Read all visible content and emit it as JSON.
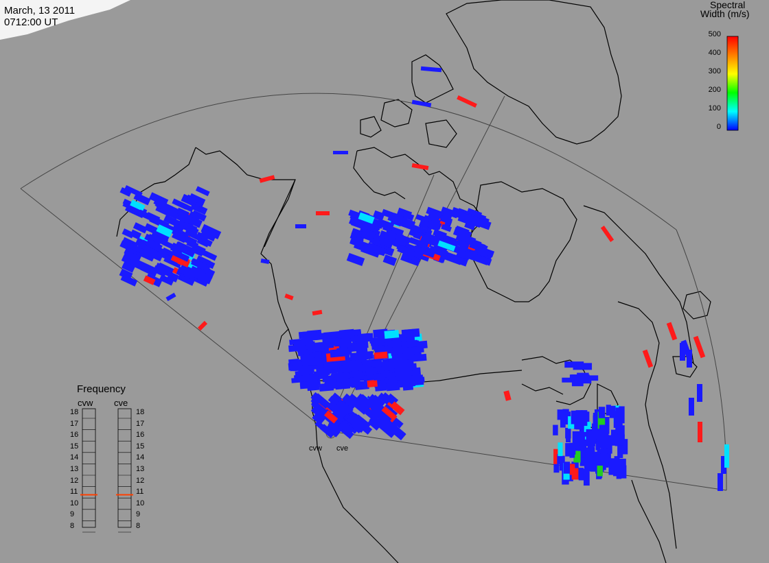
{
  "header": {
    "date": "March, 13 2011",
    "time": "0712:00 UT"
  },
  "colorbar": {
    "title_line1": "Spectral",
    "title_line2": "Width (m/s)",
    "ticks": [
      "500",
      "400",
      "300",
      "200",
      "100",
      "0"
    ],
    "colors": [
      "#ff0000",
      "#ff7f00",
      "#ffff00",
      "#00ff00",
      "#00ffff",
      "#0000ff"
    ]
  },
  "frequency_panel": {
    "title": "Frequency",
    "columns": [
      {
        "label": "cvw",
        "selected_mhz": 10.8
      },
      {
        "label": "cve",
        "selected_mhz": 10.8
      }
    ],
    "ticks": [
      "18",
      "17",
      "16",
      "15",
      "14",
      "13",
      "12",
      "11",
      "10",
      "9",
      "8"
    ],
    "marker_color": "#ff4000"
  },
  "radars": {
    "left_label": "cvw",
    "right_label": "cve"
  },
  "colors": {
    "background": "#9a9a9a",
    "coast": "#000000",
    "fov": "#444444",
    "low_width": "#1a1aff",
    "high_width": "#ff1a1a",
    "mid_width": "#00e0ff",
    "green_width": "#22cc22"
  }
}
